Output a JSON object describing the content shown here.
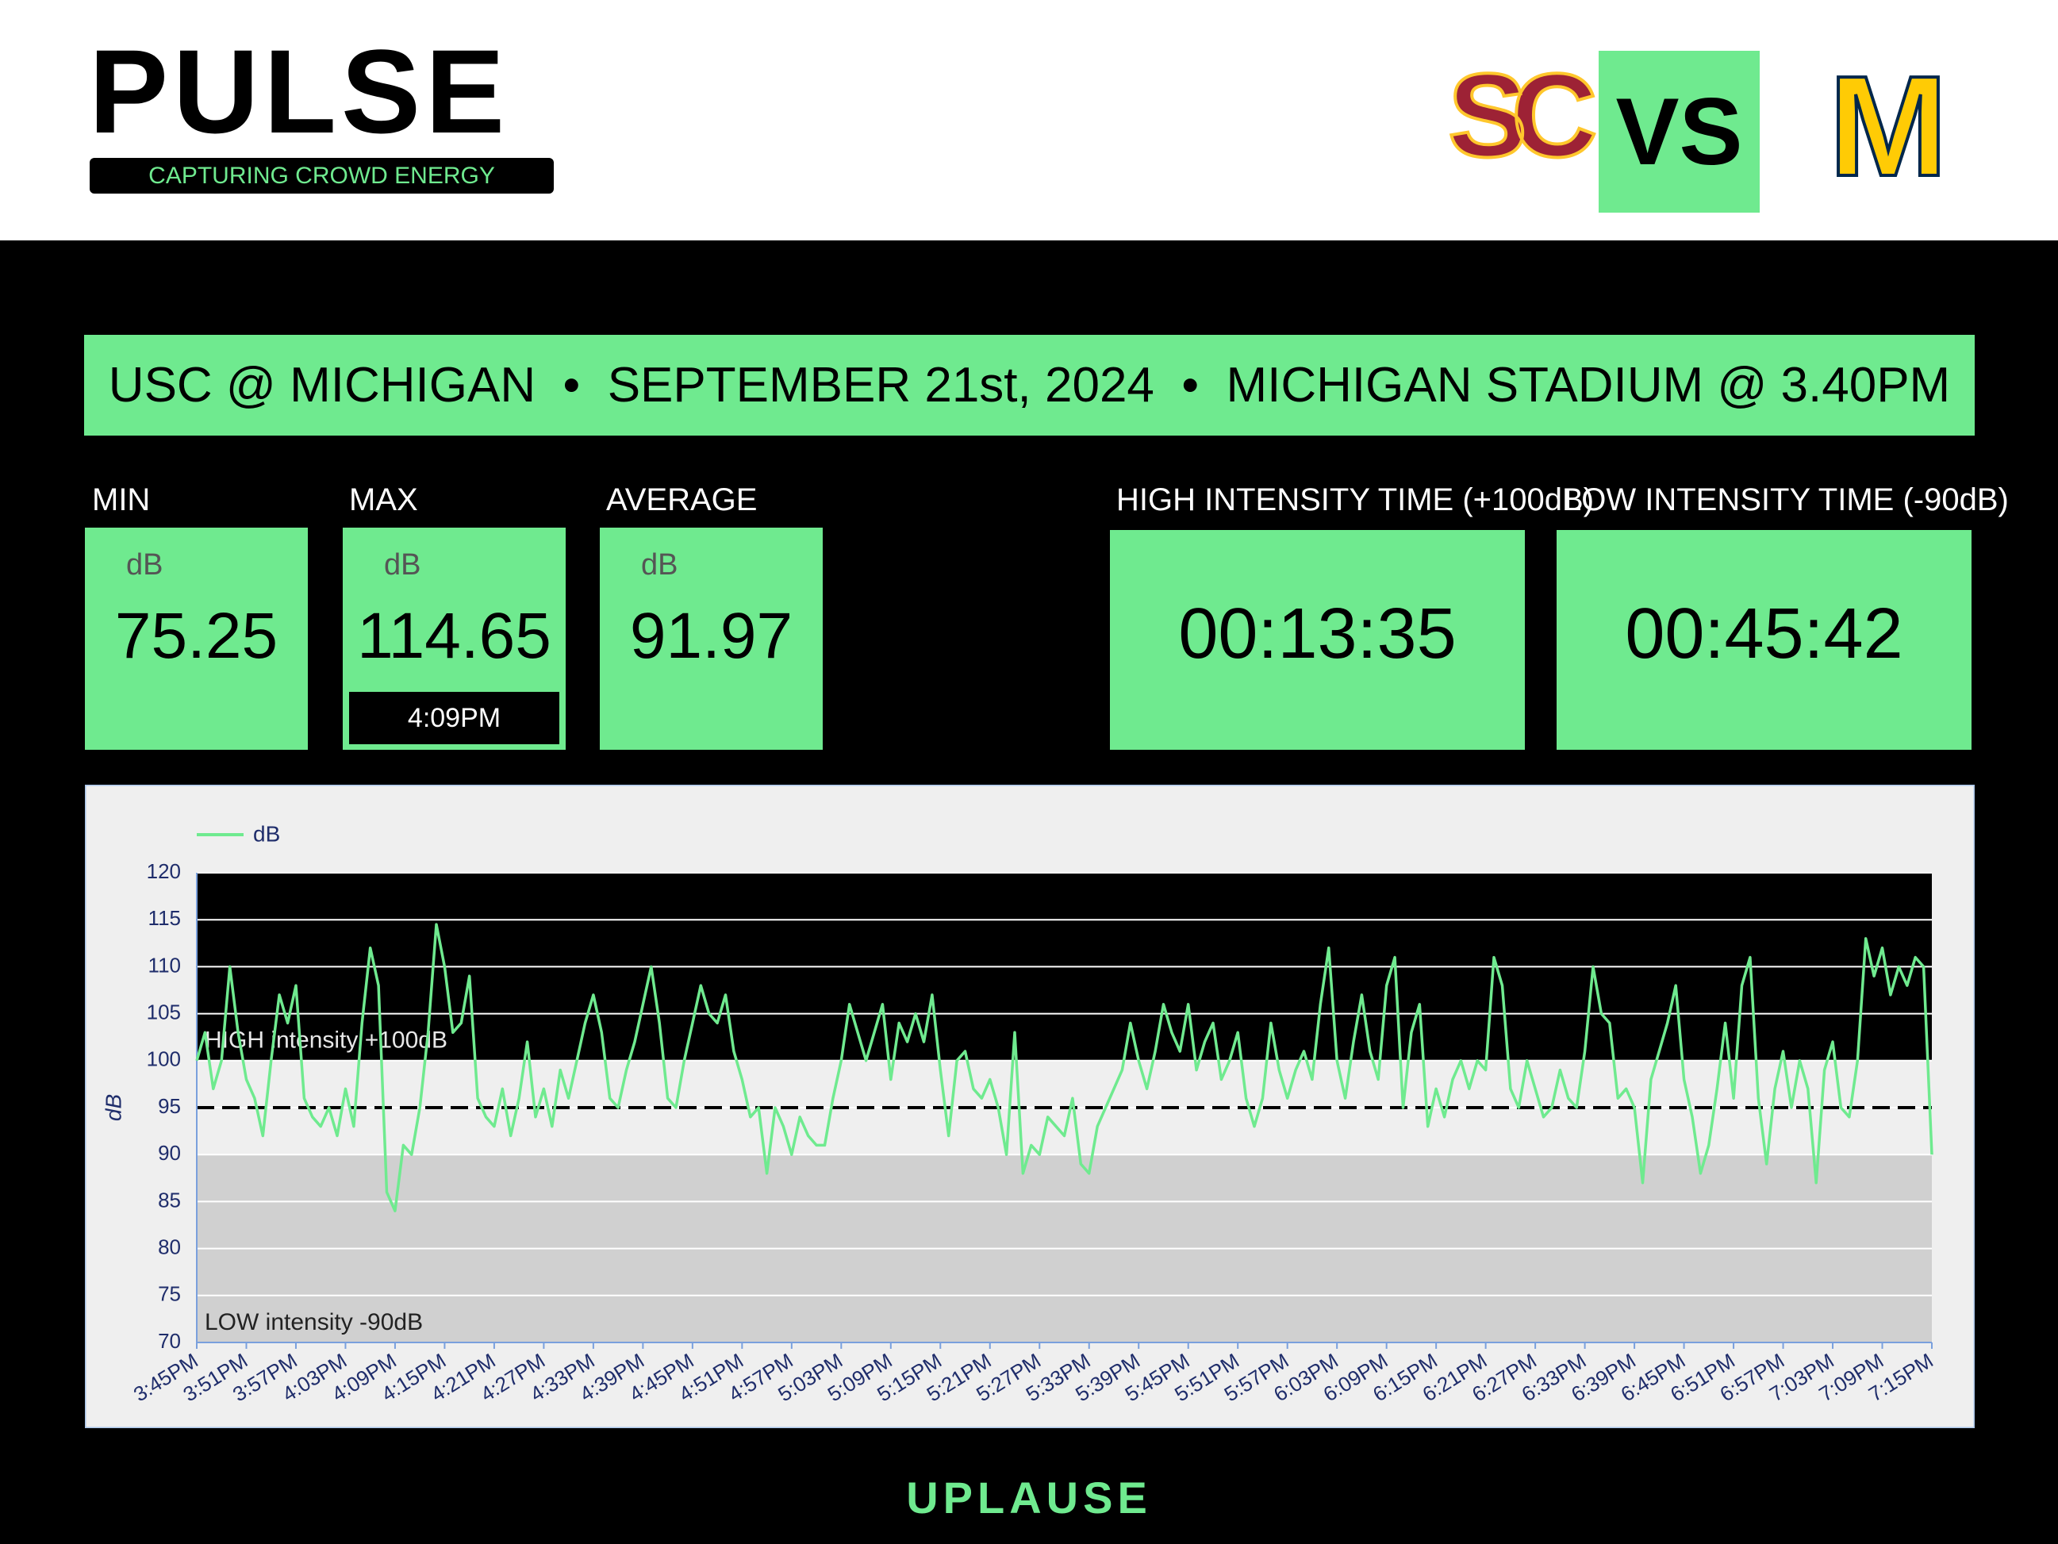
{
  "header": {
    "logo": "PULSE",
    "tagline": "CAPTURING CROWD ENERGY",
    "home_team": "SC",
    "versus": "VS",
    "away_team": "M"
  },
  "banner": {
    "text": "USC @ MICHIGAN  •  SEPTEMBER 21st, 2024  •  MICHIGAN STADIUM @ 3.40PM"
  },
  "stats": [
    {
      "label": "MIN",
      "unit": "dB",
      "value": 75.25
    },
    {
      "label": "MAX",
      "unit": "dB",
      "value": 114.65,
      "time": "4:09PM"
    },
    {
      "label": "AVERAGE",
      "unit": "dB",
      "value": 91.97
    },
    {
      "label": "HIGH INTENSITY TIME (+100dB)",
      "value": "00:13:35"
    },
    {
      "label": "LOW INTENSITY TIME (-90dB)",
      "value": "00:45:42"
    }
  ],
  "chart_data": {
    "type": "line",
    "y_label": "dB",
    "ylim": [
      70,
      120
    ],
    "yticks": [
      70,
      75,
      80,
      85,
      90,
      95,
      100,
      105,
      110,
      115,
      120
    ],
    "grid": true,
    "legend": "top-left",
    "bands": [
      {
        "from": 100,
        "to": 120,
        "color": "#000000"
      },
      {
        "from": 90,
        "to": 100,
        "color": "#efefef"
      },
      {
        "from": 70,
        "to": 90,
        "color": "#d0d0d0"
      }
    ],
    "reference_line": 95,
    "annotations": [
      {
        "text": "HIGH intensity +100dB",
        "y": 100
      },
      {
        "text": "LOW intensity -90dB",
        "y": 70
      }
    ],
    "categories": [
      "3:45PM",
      null,
      null,
      null,
      null,
      null,
      "3:51PM",
      null,
      null,
      null,
      null,
      null,
      "3:57PM",
      null,
      null,
      null,
      null,
      null,
      "4:03PM",
      null,
      null,
      null,
      null,
      null,
      "4:09PM",
      null,
      null,
      null,
      null,
      null,
      "4:15PM",
      null,
      null,
      null,
      null,
      null,
      "4:21PM",
      null,
      null,
      null,
      null,
      null,
      "4:27PM",
      null,
      null,
      null,
      null,
      null,
      "4:33PM",
      null,
      null,
      null,
      null,
      null,
      "4:39PM",
      null,
      null,
      null,
      null,
      null,
      "4:45PM",
      null,
      null,
      null,
      null,
      null,
      "4:51PM",
      null,
      null,
      null,
      null,
      null,
      "4:57PM",
      null,
      null,
      null,
      null,
      null,
      "5:03PM",
      null,
      null,
      null,
      null,
      null,
      "5:09PM",
      null,
      null,
      null,
      null,
      null,
      "5:15PM",
      null,
      null,
      null,
      null,
      null,
      "5:21PM",
      null,
      null,
      null,
      null,
      null,
      "5:27PM",
      null,
      null,
      null,
      null,
      null,
      "5:33PM",
      null,
      null,
      null,
      null,
      null,
      "5:39PM",
      null,
      null,
      null,
      null,
      null,
      "5:45PM",
      null,
      null,
      null,
      null,
      null,
      "5:51PM",
      null,
      null,
      null,
      null,
      null,
      "5:57PM",
      null,
      null,
      null,
      null,
      null,
      "6:03PM",
      null,
      null,
      null,
      null,
      null,
      "6:09PM",
      null,
      null,
      null,
      null,
      null,
      "6:15PM",
      null,
      null,
      null,
      null,
      null,
      "6:21PM",
      null,
      null,
      null,
      null,
      null,
      "6:27PM",
      null,
      null,
      null,
      null,
      null,
      "6:33PM",
      null,
      null,
      null,
      null,
      null,
      "6:39PM",
      null,
      null,
      null,
      null,
      null,
      "6:45PM",
      null,
      null,
      null,
      null,
      null,
      "6:51PM",
      null,
      null,
      null,
      null,
      null,
      "6:57PM",
      null,
      null,
      null,
      null,
      null,
      "7:03PM",
      null,
      null,
      null,
      null,
      null,
      "7:09PM",
      null,
      null,
      null,
      null,
      null,
      "7:15PM"
    ],
    "series": [
      {
        "name": "dB",
        "color": "#6fea8f",
        "values": [
          100,
          103,
          97,
          100,
          110,
          103,
          98,
          96,
          92,
          100,
          107,
          104,
          108,
          96,
          94,
          93,
          95,
          92,
          97,
          93,
          104,
          112,
          108,
          86,
          84,
          91,
          90,
          95,
          103,
          114.5,
          110,
          103,
          104,
          109,
          96,
          94,
          93,
          97,
          92,
          96,
          102,
          94,
          97,
          93,
          99,
          96,
          100,
          104,
          107,
          103,
          96,
          95,
          99,
          102,
          106,
          110,
          104,
          96,
          95,
          100,
          104,
          108,
          105,
          104,
          107,
          101,
          98,
          94,
          95,
          88,
          95,
          93,
          90,
          94,
          92,
          91,
          91,
          96,
          100,
          106,
          103,
          100,
          103,
          106,
          98,
          104,
          102,
          105,
          102,
          107,
          99,
          92,
          100,
          101,
          97,
          96,
          98,
          95,
          90,
          103,
          88,
          91,
          90,
          94,
          93,
          92,
          96,
          89,
          88,
          93,
          95,
          97,
          99,
          104,
          100,
          97,
          101,
          106,
          103,
          101,
          106,
          99,
          102,
          104,
          98,
          100,
          103,
          96,
          93,
          96,
          104,
          99,
          96,
          99,
          101,
          98,
          106,
          112,
          100,
          96,
          102,
          107,
          101,
          98,
          108,
          111,
          95,
          103,
          106,
          93,
          97,
          94,
          98,
          100,
          97,
          100,
          99,
          111,
          108,
          97,
          95,
          100,
          97,
          94,
          95,
          99,
          96,
          95,
          101,
          110,
          105,
          104,
          96,
          97,
          95,
          87,
          98,
          101,
          104,
          108,
          98,
          94,
          88,
          91,
          97,
          104,
          96,
          108,
          111,
          96,
          89,
          97,
          101,
          95,
          100,
          97,
          87,
          99,
          102,
          95,
          94,
          100,
          113,
          109,
          112,
          107,
          110,
          108,
          111,
          110,
          90
        ]
      }
    ]
  },
  "footer": {
    "brand": "UPLAUSE"
  }
}
